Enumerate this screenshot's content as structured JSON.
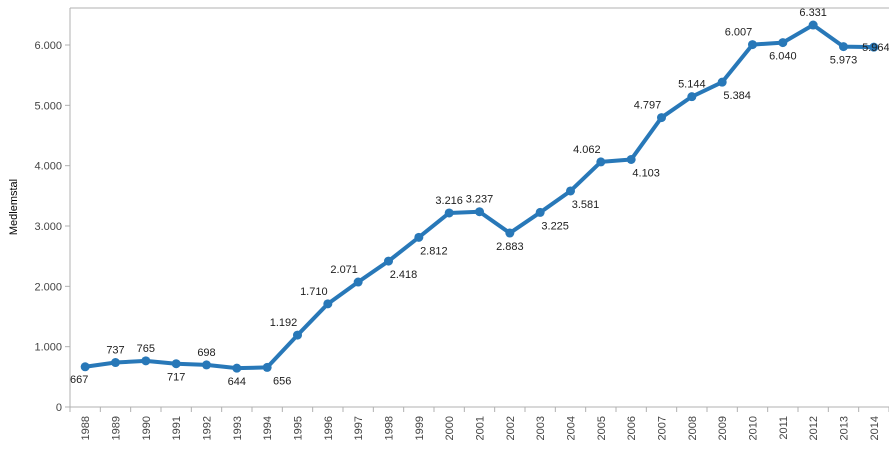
{
  "chart_data": {
    "type": "line",
    "title": "",
    "xlabel": "",
    "ylabel": "Medlemstal",
    "categories": [
      "1988",
      "1989",
      "1990",
      "1991",
      "1992",
      "1993",
      "1994",
      "1995",
      "1996",
      "1997",
      "1998",
      "1999",
      "2000",
      "2001",
      "2002",
      "2003",
      "2004",
      "2005",
      "2006",
      "2007",
      "2008",
      "2009",
      "2010",
      "2011",
      "2012",
      "2013",
      "2014"
    ],
    "values": [
      667,
      737,
      765,
      717,
      698,
      644,
      656,
      1192,
      1710,
      2071,
      2418,
      2812,
      3216,
      3237,
      2883,
      3225,
      3581,
      4062,
      4103,
      4797,
      5144,
      5384,
      6007,
      6040,
      6331,
      5973,
      5964
    ],
    "point_labels": [
      "667",
      "737",
      "765",
      "717",
      "698",
      "644",
      "656",
      "1.192",
      "1.710",
      "2.071",
      "2.418",
      "2.812",
      "3.216",
      "3.237",
      "2.883",
      "3.225",
      "3.581",
      "4.062",
      "4.103",
      "4.797",
      "5.144",
      "5.384",
      "6.007",
      "6.040",
      "6.331",
      "5.973",
      "5.964"
    ],
    "label_positions": [
      "below-left",
      "above",
      "above",
      "below",
      "above",
      "below",
      "below-right",
      "above-left",
      "above-left",
      "above-left",
      "below-right",
      "below-right",
      "above",
      "above",
      "below",
      "below-right",
      "below-right",
      "above-left",
      "below-right",
      "above-left",
      "above",
      "below-right",
      "above-left",
      "below",
      "above",
      "below",
      "center-right"
    ],
    "y_tick_labels": [
      "0",
      "1.000",
      "2.000",
      "3.000",
      "4.000",
      "5.000",
      "6.000"
    ],
    "y_tick_values": [
      0,
      1000,
      2000,
      3000,
      4000,
      5000,
      6000
    ],
    "ylim": [
      0,
      6600
    ],
    "grid": false,
    "legend": false,
    "colors": {
      "line": "#2878b8",
      "marker": "#2878b8",
      "data_label": "#202020",
      "axis_text": "#444444",
      "axis_line": "#b0b0b0",
      "background": "#ffffff"
    }
  }
}
